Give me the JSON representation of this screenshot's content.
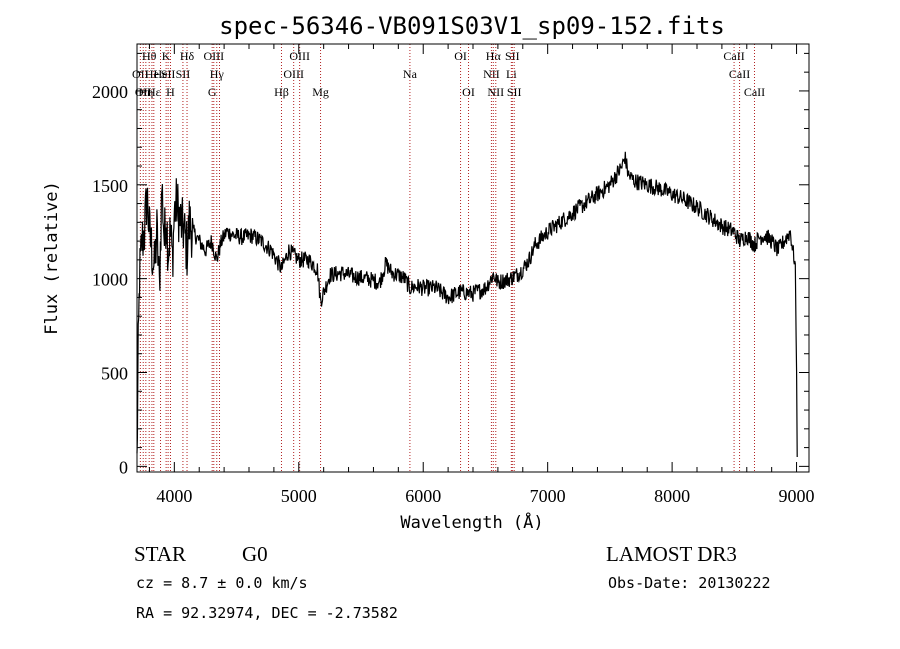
{
  "chart_data": {
    "type": "line",
    "title": "spec-56346-VB091S03V1_sp09-152.fits",
    "xlabel": "Wavelength (Å)",
    "ylabel": "Flux (relative)",
    "xlim": [
      3700,
      9100
    ],
    "ylim": [
      -30,
      2250
    ],
    "xticks": [
      4000,
      5000,
      6000,
      7000,
      8000,
      9000
    ],
    "yticks": [
      0,
      500,
      1000,
      1500,
      2000
    ],
    "x_minor_step": 200,
    "y_minor_step": 100,
    "grid": false,
    "series": [
      {
        "x": [
          3700,
          3710,
          3720,
          3740,
          3760,
          3780,
          3800,
          3820,
          3840,
          3860,
          3880,
          3900,
          3920,
          3935,
          3950,
          3968,
          3985,
          4000,
          4020,
          4050,
          4080,
          4102,
          4120,
          4150,
          4200,
          4250,
          4300,
          4340,
          4380,
          4420,
          4480,
          4550,
          4620,
          4700,
          4780,
          4861,
          4920,
          5000,
          5080,
          5150,
          5175,
          5250,
          5350,
          5450,
          5550,
          5650,
          5700,
          5750,
          5800,
          5850,
          5893,
          5950,
          6000,
          6100,
          6200,
          6300,
          6400,
          6500,
          6563,
          6600,
          6700,
          6750,
          6800,
          6850,
          6900,
          7000,
          7100,
          7200,
          7300,
          7400,
          7500,
          7550,
          7600,
          7620,
          7650,
          7700,
          7800,
          7900,
          8000,
          8100,
          8200,
          8300,
          8400,
          8498,
          8542,
          8600,
          8662,
          8700,
          8750,
          8800,
          8850,
          8900,
          8950,
          8970,
          8990,
          9000,
          9005
        ],
        "y": [
          20,
          600,
          1000,
          1200,
          1250,
          1450,
          1250,
          1150,
          1050,
          1250,
          950,
          1500,
          1200,
          1350,
          1150,
          1250,
          1100,
          1350,
          1400,
          1300,
          1250,
          1150,
          1300,
          1250,
          1200,
          1150,
          1200,
          1100,
          1200,
          1250,
          1230,
          1220,
          1230,
          1200,
          1150,
          1050,
          1150,
          1100,
          1100,
          1050,
          880,
          1020,
          1030,
          1010,
          1000,
          980,
          1080,
          1030,
          1020,
          1000,
          950,
          960,
          950,
          950,
          900,
          930,
          920,
          950,
          1020,
          980,
          1000,
          1020,
          1050,
          1100,
          1180,
          1250,
          1300,
          1350,
          1400,
          1450,
          1500,
          1550,
          1600,
          1650,
          1550,
          1520,
          1500,
          1480,
          1450,
          1420,
          1380,
          1330,
          1280,
          1250,
          1200,
          1230,
          1180,
          1220,
          1230,
          1200,
          1150,
          1200,
          1250,
          1150,
          1080,
          500,
          50
        ]
      }
    ],
    "lines": [
      {
        "wave": 3727,
        "row": 1,
        "text": "OII"
      },
      {
        "wave": 3750,
        "row": 2,
        "text": "OII"
      },
      {
        "wave": 3771,
        "row": 2,
        "text": "Hη"
      },
      {
        "wave": 3798,
        "row": 0,
        "text": "Hθ"
      },
      {
        "wave": 3820,
        "row": 1,
        "text": "He"
      },
      {
        "wave": 3835,
        "row": 2,
        "text": "Hε"
      },
      {
        "wave": 3889,
        "row": 1,
        "text": "He"
      },
      {
        "wave": 3934,
        "row": 0,
        "text": "K"
      },
      {
        "wave": 3950,
        "row": 1,
        "text": "SII"
      },
      {
        "wave": 3969,
        "row": 2,
        "text": "H"
      },
      {
        "wave": 4069,
        "row": 1,
        "text": "SII"
      },
      {
        "wave": 4102,
        "row": 0,
        "text": "Hδ"
      },
      {
        "wave": 4304,
        "row": 2,
        "text": "G"
      },
      {
        "wave": 4317,
        "row": 0,
        "text": "OIII"
      },
      {
        "wave": 4341,
        "row": 1,
        "text": "Hγ"
      },
      {
        "wave": 4363,
        "row": 0,
        "text": ""
      },
      {
        "wave": 4861,
        "row": 2,
        "text": "Hβ"
      },
      {
        "wave": 4959,
        "row": 1,
        "text": "OIII"
      },
      {
        "wave": 5007,
        "row": 0,
        "text": "OIII"
      },
      {
        "wave": 5175,
        "row": 2,
        "text": "Mg"
      },
      {
        "wave": 5893,
        "row": 1,
        "text": "Na"
      },
      {
        "wave": 6300,
        "row": 0,
        "text": "OI"
      },
      {
        "wave": 6364,
        "row": 2,
        "text": "OI"
      },
      {
        "wave": 6548,
        "row": 1,
        "text": "NII"
      },
      {
        "wave": 6563,
        "row": 0,
        "text": "Hα"
      },
      {
        "wave": 6583,
        "row": 2,
        "text": "NII"
      },
      {
        "wave": 6708,
        "row": 1,
        "text": "Li"
      },
      {
        "wave": 6716,
        "row": 0,
        "text": "SII"
      },
      {
        "wave": 6731,
        "row": 2,
        "text": "SII"
      },
      {
        "wave": 8498,
        "row": 0,
        "text": "CaII"
      },
      {
        "wave": 8542,
        "row": 1,
        "text": "CaII"
      },
      {
        "wave": 8662,
        "row": 2,
        "text": "CaII"
      }
    ]
  },
  "info": {
    "object_class": "STAR",
    "subclass": "G0",
    "survey": "LAMOST DR3",
    "cz": "cz = 8.7 ± 0.0 km/s",
    "obs_date": "Obs-Date: 20130222",
    "coords": "RA =  92.32974, DEC =  -2.73582"
  },
  "colors": {
    "spectrum": "#000000",
    "line_markers": "#b22222",
    "axes": "#000000"
  }
}
